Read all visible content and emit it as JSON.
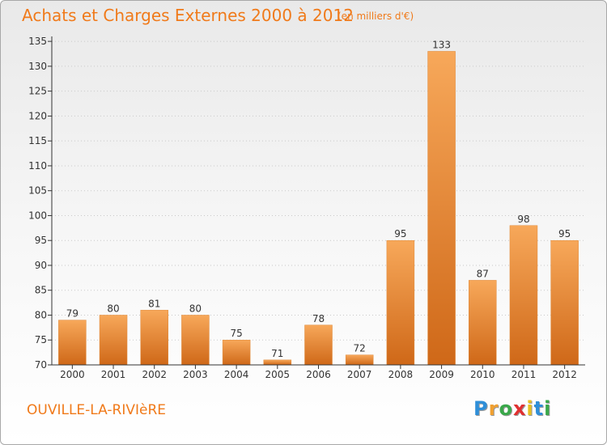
{
  "header": {
    "title": "Achats et Charges Externes 2000 à 2012",
    "unit": "(en milliers d'€)"
  },
  "footer": {
    "commune": "OUVILLE-LA-RIVIèRE",
    "logo_letters": [
      "P",
      "r",
      "o",
      "x",
      "i",
      "t",
      "i"
    ],
    "logo_colors": [
      "#2f8fd8",
      "#f0a030",
      "#3aa84a",
      "#e03030",
      "#e8c020",
      "#2f8fd8",
      "#3aa84a"
    ]
  },
  "colors": {
    "accent": "#f07a1a",
    "bar_top": "#f7a85a",
    "bar_bottom": "#cf6818",
    "axis": "#333333"
  },
  "chart_data": {
    "type": "bar",
    "categories": [
      "2000",
      "2001",
      "2002",
      "2003",
      "2004",
      "2005",
      "2006",
      "2007",
      "2008",
      "2009",
      "2010",
      "2011",
      "2012"
    ],
    "values": [
      79,
      80,
      81,
      80,
      75,
      71,
      78,
      72,
      95,
      133,
      87,
      98,
      95
    ],
    "data_labels": [
      "79",
      "80",
      "81",
      "80",
      "75",
      "71",
      "78",
      "72",
      "95",
      "133",
      "87",
      "98",
      "95"
    ],
    "yticks": [
      70,
      75,
      80,
      85,
      90,
      95,
      100,
      105,
      110,
      115,
      120,
      125,
      130,
      135
    ],
    "ylim": [
      70,
      136
    ],
    "grid": true
  }
}
